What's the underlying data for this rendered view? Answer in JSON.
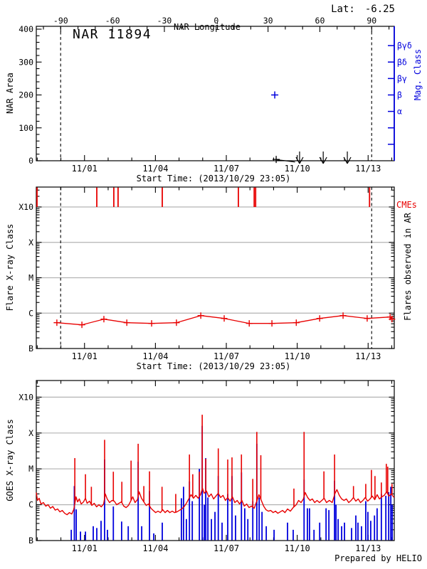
{
  "chart_data": {
    "type": [
      "line",
      "scatter",
      "bar"
    ],
    "header": {
      "lat_label": "Lat:",
      "lat_value": "-6.25"
    },
    "xaxis": {
      "start_time_label": "Start Time: (2013/10/29 23:05)",
      "range_days": [
        0,
        15.14
      ],
      "major_ticks": [
        {
          "day": 2.04,
          "label": "11/01"
        },
        {
          "day": 5.04,
          "label": "11/04"
        },
        {
          "day": 8.04,
          "label": "11/07"
        },
        {
          "day": 11.04,
          "label": "11/10"
        },
        {
          "day": 14.04,
          "label": "11/13"
        }
      ],
      "minor_tick_days": [
        0.04,
        1.04,
        3.04,
        4.04,
        6.04,
        7.04,
        9.04,
        10.04,
        12.04,
        13.04,
        15.04
      ],
      "limb_crossing_days": [
        1.03,
        14.19
      ]
    },
    "panel1": {
      "type": "scatter",
      "title": "NAR 11894",
      "ylabel": "NAR Area",
      "ylim": [
        0,
        400
      ],
      "ytick_major": [
        0,
        100,
        200,
        300,
        400
      ],
      "ytick_minor_step": 20,
      "top_axis": {
        "label": "NAR Longitude",
        "major_ticks": [
          -90,
          -60,
          -30,
          0,
          30,
          60,
          90
        ],
        "minor_range": [
          -100,
          100
        ],
        "minor_step": 10
      },
      "right_axis": {
        "label": "Mag. Class",
        "ticks": [
          {
            "area_level": 350,
            "label": "βγδ"
          },
          {
            "area_level": 300,
            "label": "βδ"
          },
          {
            "area_level": 250,
            "label": "βγ"
          },
          {
            "area_level": 200,
            "label": "β"
          },
          {
            "area_level": 150,
            "label": "α"
          },
          {
            "area_level": 100,
            "label": ""
          },
          {
            "area_level": 50,
            "label": ""
          }
        ]
      },
      "area_marker": {
        "day": 10.15,
        "area": 4
      },
      "area_tail": [
        [
          10.17,
          3
        ],
        [
          10.55,
          0
        ],
        [
          10.95,
          -4
        ]
      ],
      "upper_limit_arrow_days": [
        11.14,
        12.14,
        13.16
      ],
      "mag_marker": {
        "day": 10.09,
        "area_level": 200,
        "class": "β"
      }
    },
    "panel2": {
      "type": "line",
      "ylabel": "Flare X-ray Class",
      "right_label": "Flares observed in AR",
      "cme_label": "CMEs",
      "class_ticks": [
        {
          "logv": 4,
          "label": "X10"
        },
        {
          "logv": 3,
          "label": "X"
        },
        {
          "logv": 2,
          "label": "M"
        },
        {
          "logv": 1,
          "label": "C"
        },
        {
          "logv": 0,
          "label": "B"
        }
      ],
      "cme_days": [
        0.03,
        2.56,
        3.28,
        3.46,
        5.33,
        8.55,
        9.22,
        9.28,
        14.1
      ],
      "flare_curve": [
        [
          0.87,
          0.73
        ],
        [
          1.93,
          0.67
        ],
        [
          2.86,
          0.83
        ],
        [
          3.83,
          0.73
        ],
        [
          4.88,
          0.71
        ],
        [
          5.93,
          0.73
        ],
        [
          6.96,
          0.93
        ],
        [
          7.95,
          0.85
        ],
        [
          9.01,
          0.71
        ],
        [
          9.97,
          0.71
        ],
        [
          11.0,
          0.73
        ],
        [
          11.99,
          0.85
        ],
        [
          12.98,
          0.93
        ],
        [
          14.0,
          0.85
        ],
        [
          14.97,
          0.89
        ],
        [
          15.05,
          0.83
        ]
      ]
    },
    "panel3": {
      "type": "line",
      "ylabel": "GOES X-ray Class",
      "credit": "Prepared by HELIO",
      "class_ticks": [
        {
          "logv": 4,
          "label": "X10"
        },
        {
          "logv": 3,
          "label": "X"
        },
        {
          "logv": 2,
          "label": "M"
        },
        {
          "logv": 1,
          "label": "C"
        },
        {
          "logv": 0,
          "label": "B"
        }
      ],
      "red_curve": [
        [
          0.0,
          1.34
        ],
        [
          0.05,
          1.12
        ],
        [
          0.12,
          1.18
        ],
        [
          0.2,
          1.02
        ],
        [
          0.3,
          1.06
        ],
        [
          0.4,
          0.96
        ],
        [
          0.5,
          1.0
        ],
        [
          0.6,
          0.9
        ],
        [
          0.7,
          0.95
        ],
        [
          0.8,
          0.85
        ],
        [
          0.9,
          0.88
        ],
        [
          1.0,
          0.8
        ],
        [
          1.1,
          0.84
        ],
        [
          1.2,
          0.76
        ],
        [
          1.3,
          0.72
        ],
        [
          1.4,
          0.78
        ],
        [
          1.5,
          0.74
        ],
        [
          1.58,
          0.86
        ],
        [
          1.63,
          1.02
        ],
        [
          1.68,
          1.22
        ],
        [
          1.75,
          1.08
        ],
        [
          1.82,
          1.16
        ],
        [
          1.9,
          1.02
        ],
        [
          2.0,
          1.08
        ],
        [
          2.08,
          1.18
        ],
        [
          2.15,
          1.04
        ],
        [
          2.25,
          1.1
        ],
        [
          2.35,
          0.98
        ],
        [
          2.45,
          1.04
        ],
        [
          2.55,
          0.94
        ],
        [
          2.65,
          1.0
        ],
        [
          2.75,
          0.94
        ],
        [
          2.85,
          1.02
        ],
        [
          2.92,
          1.3
        ],
        [
          3.0,
          1.16
        ],
        [
          3.1,
          1.06
        ],
        [
          3.2,
          1.12
        ],
        [
          3.3,
          1.1
        ],
        [
          3.4,
          1.0
        ],
        [
          3.5,
          1.04
        ],
        [
          3.6,
          1.08
        ],
        [
          3.7,
          0.96
        ],
        [
          3.8,
          0.92
        ],
        [
          3.9,
          0.98
        ],
        [
          4.01,
          1.12
        ],
        [
          4.08,
          1.22
        ],
        [
          4.18,
          1.06
        ],
        [
          4.28,
          1.14
        ],
        [
          4.35,
          1.36
        ],
        [
          4.45,
          1.18
        ],
        [
          4.55,
          1.08
        ],
        [
          4.65,
          0.98
        ],
        [
          4.75,
          1.02
        ],
        [
          4.85,
          0.9
        ],
        [
          4.95,
          0.84
        ],
        [
          5.05,
          0.78
        ],
        [
          5.15,
          0.82
        ],
        [
          5.25,
          0.78
        ],
        [
          5.35,
          0.86
        ],
        [
          5.45,
          0.78
        ],
        [
          5.55,
          0.84
        ],
        [
          5.65,
          0.78
        ],
        [
          5.75,
          0.82
        ],
        [
          5.85,
          0.78
        ],
        [
          5.95,
          0.8
        ],
        [
          6.05,
          0.84
        ],
        [
          6.15,
          0.88
        ],
        [
          6.25,
          0.94
        ],
        [
          6.35,
          1.04
        ],
        [
          6.45,
          1.16
        ],
        [
          6.55,
          1.28
        ],
        [
          6.65,
          1.18
        ],
        [
          6.75,
          1.26
        ],
        [
          6.85,
          1.18
        ],
        [
          6.95,
          1.28
        ],
        [
          7.03,
          1.46
        ],
        [
          7.1,
          1.32
        ],
        [
          7.2,
          1.38
        ],
        [
          7.3,
          1.22
        ],
        [
          7.4,
          1.3
        ],
        [
          7.5,
          1.16
        ],
        [
          7.6,
          1.24
        ],
        [
          7.7,
          1.32
        ],
        [
          7.8,
          1.2
        ],
        [
          7.9,
          1.26
        ],
        [
          8.0,
          1.12
        ],
        [
          8.1,
          1.2
        ],
        [
          8.2,
          1.1
        ],
        [
          8.3,
          1.22
        ],
        [
          8.4,
          1.06
        ],
        [
          8.5,
          1.12
        ],
        [
          8.6,
          1.02
        ],
        [
          8.7,
          1.12
        ],
        [
          8.8,
          0.96
        ],
        [
          8.9,
          1.02
        ],
        [
          9.0,
          0.92
        ],
        [
          9.1,
          0.96
        ],
        [
          9.22,
          0.9
        ],
        [
          9.34,
          1.12
        ],
        [
          9.42,
          1.28
        ],
        [
          9.52,
          1.12
        ],
        [
          9.62,
          0.96
        ],
        [
          9.72,
          0.86
        ],
        [
          9.82,
          0.82
        ],
        [
          9.92,
          0.84
        ],
        [
          10.02,
          0.78
        ],
        [
          10.12,
          0.82
        ],
        [
          10.22,
          0.76
        ],
        [
          10.32,
          0.8
        ],
        [
          10.42,
          0.84
        ],
        [
          10.52,
          0.78
        ],
        [
          10.63,
          0.88
        ],
        [
          10.75,
          0.82
        ],
        [
          10.87,
          0.92
        ],
        [
          11.0,
          1.0
        ],
        [
          11.1,
          1.12
        ],
        [
          11.2,
          1.06
        ],
        [
          11.3,
          1.16
        ],
        [
          11.38,
          1.34
        ],
        [
          11.48,
          1.2
        ],
        [
          11.58,
          1.12
        ],
        [
          11.68,
          1.16
        ],
        [
          11.78,
          1.06
        ],
        [
          11.88,
          1.12
        ],
        [
          11.98,
          1.06
        ],
        [
          12.08,
          1.12
        ],
        [
          12.18,
          1.18
        ],
        [
          12.28,
          1.06
        ],
        [
          12.4,
          1.12
        ],
        [
          12.52,
          1.06
        ],
        [
          12.64,
          1.32
        ],
        [
          12.72,
          1.42
        ],
        [
          12.82,
          1.26
        ],
        [
          12.92,
          1.16
        ],
        [
          13.02,
          1.12
        ],
        [
          13.12,
          1.16
        ],
        [
          13.22,
          1.06
        ],
        [
          13.32,
          1.12
        ],
        [
          13.42,
          1.2
        ],
        [
          13.52,
          1.1
        ],
        [
          13.62,
          1.16
        ],
        [
          13.72,
          1.06
        ],
        [
          13.82,
          1.12
        ],
        [
          13.92,
          1.2
        ],
        [
          14.02,
          1.1
        ],
        [
          14.12,
          1.16
        ],
        [
          14.22,
          1.24
        ],
        [
          14.32,
          1.14
        ],
        [
          14.42,
          1.28
        ],
        [
          14.52,
          1.16
        ],
        [
          14.62,
          1.22
        ],
        [
          14.72,
          1.26
        ],
        [
          14.82,
          1.36
        ],
        [
          14.92,
          1.24
        ],
        [
          15.02,
          1.3
        ],
        [
          15.14,
          1.2
        ]
      ],
      "red_spikes": [
        [
          1.63,
          2.3
        ],
        [
          2.08,
          1.85
        ],
        [
          2.33,
          1.5
        ],
        [
          2.89,
          2.81
        ],
        [
          3.26,
          1.92
        ],
        [
          3.62,
          1.64
        ],
        [
          4.01,
          2.23
        ],
        [
          4.31,
          2.7
        ],
        [
          4.55,
          1.52
        ],
        [
          4.79,
          1.93
        ],
        [
          5.32,
          1.5
        ],
        [
          5.9,
          1.3
        ],
        [
          6.48,
          2.4
        ],
        [
          6.62,
          1.85
        ],
        [
          6.9,
          1.92
        ],
        [
          7.02,
          3.51
        ],
        [
          7.17,
          2.28
        ],
        [
          7.7,
          2.57
        ],
        [
          8.1,
          2.26
        ],
        [
          8.28,
          2.32
        ],
        [
          8.68,
          2.4
        ],
        [
          9.16,
          1.72
        ],
        [
          9.33,
          3.03
        ],
        [
          9.5,
          2.38
        ],
        [
          10.9,
          1.45
        ],
        [
          11.33,
          3.03
        ],
        [
          12.17,
          1.93
        ],
        [
          12.62,
          2.4
        ],
        [
          13.42,
          1.52
        ],
        [
          13.94,
          1.58
        ],
        [
          14.18,
          1.97
        ],
        [
          14.33,
          1.8
        ],
        [
          14.6,
          1.62
        ],
        [
          14.81,
          2.14
        ],
        [
          14.87,
          2.06
        ],
        [
          15.05,
          1.58
        ]
      ],
      "blue_spikes": [
        [
          1.48,
          0.3
        ],
        [
          1.61,
          1.52
        ],
        [
          1.69,
          0.87
        ],
        [
          1.87,
          0.25
        ],
        [
          2.08,
          0.25
        ],
        [
          2.41,
          0.4
        ],
        [
          2.56,
          0.35
        ],
        [
          2.74,
          0.55
        ],
        [
          2.89,
          2.26
        ],
        [
          3.01,
          0.3
        ],
        [
          3.26,
          0.95
        ],
        [
          3.61,
          0.53
        ],
        [
          3.89,
          0.4
        ],
        [
          4.31,
          2.2
        ],
        [
          4.46,
          0.4
        ],
        [
          4.79,
          1.38
        ],
        [
          4.97,
          0.2
        ],
        [
          5.33,
          0.5
        ],
        [
          6.14,
          1.18
        ],
        [
          6.23,
          1.5
        ],
        [
          6.35,
          0.6
        ],
        [
          6.48,
          1.65
        ],
        [
          6.6,
          1.1
        ],
        [
          6.9,
          2.0
        ],
        [
          7.02,
          3.2
        ],
        [
          7.11,
          1.0
        ],
        [
          7.17,
          2.3
        ],
        [
          7.26,
          1.2
        ],
        [
          7.41,
          0.6
        ],
        [
          7.56,
          0.8
        ],
        [
          7.7,
          1.8
        ],
        [
          7.86,
          0.5
        ],
        [
          8.1,
          1.3
        ],
        [
          8.28,
          1.8
        ],
        [
          8.43,
          0.7
        ],
        [
          8.68,
          1.9
        ],
        [
          8.82,
          0.9
        ],
        [
          8.95,
          0.6
        ],
        [
          9.16,
          1.1
        ],
        [
          9.33,
          2.7
        ],
        [
          9.43,
          1.2
        ],
        [
          9.55,
          0.8
        ],
        [
          9.73,
          0.4
        ],
        [
          10.06,
          0.3
        ],
        [
          10.63,
          0.5
        ],
        [
          10.87,
          0.3
        ],
        [
          11.33,
          1.7
        ],
        [
          11.47,
          0.9
        ],
        [
          11.56,
          0.9
        ],
        [
          11.75,
          0.3
        ],
        [
          11.99,
          0.5
        ],
        [
          12.26,
          0.9
        ],
        [
          12.38,
          0.85
        ],
        [
          12.62,
          1.67
        ],
        [
          12.68,
          1.0
        ],
        [
          12.77,
          0.6
        ],
        [
          12.92,
          0.4
        ],
        [
          13.04,
          0.5
        ],
        [
          13.34,
          0.35
        ],
        [
          13.52,
          0.7
        ],
        [
          13.61,
          0.5
        ],
        [
          13.76,
          0.4
        ],
        [
          13.94,
          1.1
        ],
        [
          14.03,
          0.8
        ],
        [
          14.15,
          0.55
        ],
        [
          14.31,
          0.7
        ],
        [
          14.42,
          0.9
        ],
        [
          14.6,
          1.3
        ],
        [
          14.79,
          1.25
        ],
        [
          14.91,
          1.35
        ],
        [
          15.0,
          1.5
        ],
        [
          15.06,
          1.0
        ]
      ]
    },
    "colors": {
      "red": "#e80000",
      "blue": "#0000dd",
      "gray_grid": "#b3b3b3",
      "black": "#000000"
    }
  }
}
